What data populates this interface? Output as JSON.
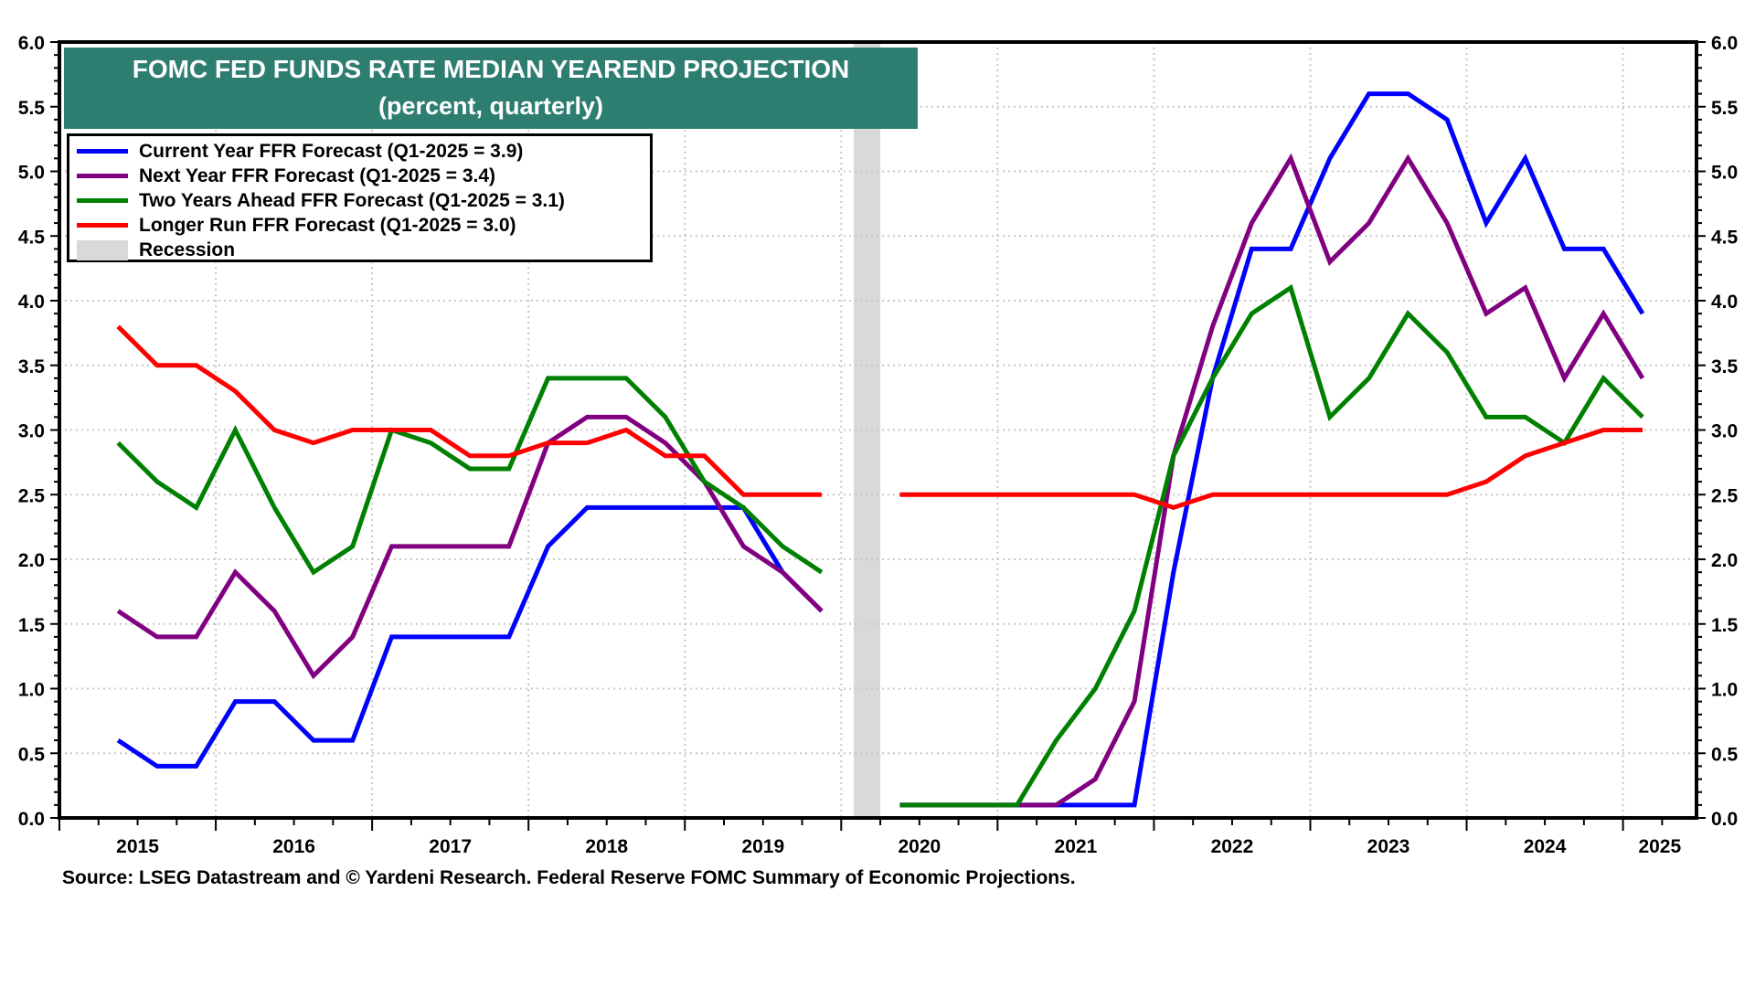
{
  "chart_data": {
    "type": "line",
    "title": "FOMC FED FUNDS RATE MEDIAN YEAREND PROJECTION",
    "subtitle": "(percent, quarterly)",
    "xlabel": "",
    "ylabel": "",
    "ylim": [
      0,
      6
    ],
    "xlim": [
      2015.0,
      2025.47
    ],
    "y_ticks": [
      "0.0",
      "0.5",
      "1.0",
      "1.5",
      "2.0",
      "2.5",
      "3.0",
      "3.5",
      "4.0",
      "4.5",
      "5.0",
      "5.5",
      "6.0"
    ],
    "y_tick_values": [
      0,
      0.5,
      1,
      1.5,
      2,
      2.5,
      3,
      3.5,
      4,
      4.5,
      5,
      5.5,
      6
    ],
    "x_ticks": [
      "2015",
      "2016",
      "2017",
      "2018",
      "2019",
      "2020",
      "2021",
      "2022",
      "2023",
      "2024",
      "2025"
    ],
    "grid": true,
    "dual_y_axis": true,
    "legend_position": "top-left",
    "x": [
      "Q2-2015",
      "Q3-2015",
      "Q4-2015",
      "Q1-2016",
      "Q2-2016",
      "Q3-2016",
      "Q4-2016",
      "Q1-2017",
      "Q2-2017",
      "Q3-2017",
      "Q4-2017",
      "Q1-2018",
      "Q2-2018",
      "Q3-2018",
      "Q4-2018",
      "Q1-2019",
      "Q2-2019",
      "Q3-2019",
      "Q4-2019",
      "Q1-2020",
      "Q2-2020",
      "Q3-2020",
      "Q4-2020",
      "Q1-2021",
      "Q2-2021",
      "Q3-2021",
      "Q4-2021",
      "Q1-2022",
      "Q2-2022",
      "Q3-2022",
      "Q4-2022",
      "Q1-2023",
      "Q2-2023",
      "Q3-2023",
      "Q4-2023",
      "Q1-2024",
      "Q2-2024",
      "Q3-2024",
      "Q4-2024",
      "Q1-2025"
    ],
    "series": [
      {
        "name": "Current Year FFR Forecast",
        "legend": "Current Year FFR Forecast (Q1-2025 = 3.9)",
        "color": "#0000ff",
        "values": [
          0.6,
          0.4,
          0.4,
          0.9,
          0.9,
          0.6,
          0.6,
          1.4,
          1.4,
          1.4,
          1.4,
          2.1,
          2.4,
          2.4,
          2.4,
          2.4,
          2.4,
          1.9,
          1.6,
          null,
          0.1,
          0.1,
          0.1,
          0.1,
          0.1,
          0.1,
          0.1,
          1.9,
          3.4,
          4.4,
          4.4,
          5.1,
          5.6,
          5.6,
          5.4,
          4.6,
          5.1,
          4.4,
          4.4,
          3.9
        ]
      },
      {
        "name": "Next Year FFR Forecast",
        "legend": "Next Year FFR Forecast (Q1-2025 = 3.4)",
        "color": "#800080",
        "values": [
          1.6,
          1.4,
          1.4,
          1.9,
          1.6,
          1.1,
          1.4,
          2.1,
          2.1,
          2.1,
          2.1,
          2.9,
          3.1,
          3.1,
          2.9,
          2.6,
          2.1,
          1.9,
          1.6,
          null,
          0.1,
          0.1,
          0.1,
          0.1,
          0.1,
          0.3,
          0.9,
          2.8,
          3.8,
          4.6,
          5.1,
          4.3,
          4.6,
          5.1,
          4.6,
          3.9,
          4.1,
          3.4,
          3.9,
          3.4
        ]
      },
      {
        "name": "Two Years Ahead FFR Forecast",
        "legend": "Two Years Ahead FFR Forecast (Q1-2025 = 3.1)",
        "color": "#008000",
        "values": [
          2.9,
          2.6,
          2.4,
          3.0,
          2.4,
          1.9,
          2.1,
          3.0,
          2.9,
          2.7,
          2.7,
          3.4,
          3.4,
          3.4,
          3.1,
          2.6,
          2.4,
          2.1,
          1.9,
          null,
          0.1,
          0.1,
          0.1,
          0.1,
          0.6,
          1.0,
          1.6,
          2.8,
          3.4,
          3.9,
          4.1,
          3.1,
          3.4,
          3.9,
          3.6,
          3.1,
          3.1,
          2.9,
          3.4,
          3.1
        ]
      },
      {
        "name": "Longer Run FFR Forecast",
        "legend": "Longer Run FFR Forecast (Q1-2025 = 3.0)",
        "color": "#ff0000",
        "values": [
          3.8,
          3.5,
          3.5,
          3.3,
          3.0,
          2.9,
          3.0,
          3.0,
          3.0,
          2.8,
          2.8,
          2.9,
          2.9,
          3.0,
          2.8,
          2.8,
          2.5,
          2.5,
          2.5,
          null,
          2.5,
          2.5,
          2.5,
          2.5,
          2.5,
          2.5,
          2.5,
          2.4,
          2.5,
          2.5,
          2.5,
          2.5,
          2.5,
          2.5,
          2.5,
          2.6,
          2.8,
          2.9,
          3.0,
          3.0
        ]
      }
    ],
    "recession": {
      "label": "Recession",
      "color": "#d9d9d9",
      "start": 2020.08,
      "end": 2020.25
    },
    "source": "Source: LSEG Datastream and © Yardeni Research. Federal Reserve FOMC Summary of Economic Projections."
  }
}
